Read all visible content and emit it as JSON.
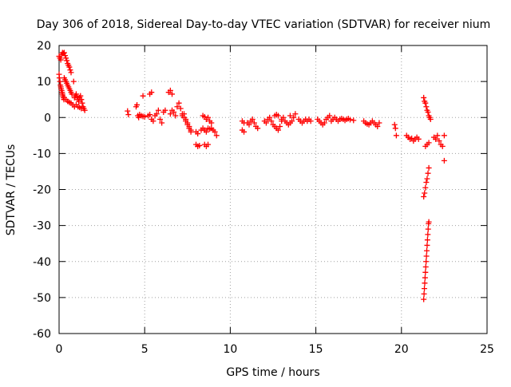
{
  "chart_data": {
    "type": "scatter",
    "title": "Day 306 of 2018, Sidereal Day-to-day VTEC variation (SDTVAR) for receiver nium",
    "xlabel": "GPS time / hours",
    "ylabel": "SDTVAR / TECUs",
    "xlim": [
      0,
      25
    ],
    "ylim": [
      -60,
      20
    ],
    "xticks": [
      0,
      5,
      10,
      15,
      20,
      25
    ],
    "yticks": [
      20,
      10,
      0,
      -10,
      -20,
      -30,
      -40,
      -50,
      -60
    ],
    "xtick_labels": [
      "0",
      "5",
      "10",
      "15",
      "20",
      "25"
    ],
    "ytick_labels": [
      "20",
      "10",
      "0",
      "-10",
      "-20",
      "-30",
      "-40",
      "-50",
      "-60"
    ],
    "grid": true,
    "marker": "+",
    "marker_color": "#ff0000",
    "series": [
      {
        "name": "SDTVAR",
        "points": [
          [
            0.0,
            17.0
          ],
          [
            0.05,
            16.5
          ],
          [
            0.1,
            16.0
          ],
          [
            0.15,
            17.5
          ],
          [
            0.2,
            18.0
          ],
          [
            0.25,
            17.8
          ],
          [
            0.3,
            18.0
          ],
          [
            0.35,
            17.2
          ],
          [
            0.4,
            16.5
          ],
          [
            0.45,
            15.8
          ],
          [
            0.5,
            15.0
          ],
          [
            0.55,
            14.5
          ],
          [
            0.6,
            14.0
          ],
          [
            0.65,
            13.2
          ],
          [
            0.7,
            12.5
          ],
          [
            0.0,
            12.0
          ],
          [
            0.02,
            11.0
          ],
          [
            0.05,
            10.0
          ],
          [
            0.08,
            9.0
          ],
          [
            0.1,
            8.5
          ],
          [
            0.12,
            8.0
          ],
          [
            0.15,
            7.5
          ],
          [
            0.18,
            7.0
          ],
          [
            0.2,
            6.5
          ],
          [
            0.22,
            6.0
          ],
          [
            0.25,
            5.5
          ],
          [
            0.28,
            5.0
          ],
          [
            0.3,
            11.0
          ],
          [
            0.35,
            10.5
          ],
          [
            0.4,
            10.0
          ],
          [
            0.45,
            9.5
          ],
          [
            0.5,
            9.0
          ],
          [
            0.55,
            8.5
          ],
          [
            0.6,
            8.0
          ],
          [
            0.65,
            7.5
          ],
          [
            0.7,
            7.0
          ],
          [
            0.75,
            6.5
          ],
          [
            0.3,
            5.5
          ],
          [
            0.4,
            5.0
          ],
          [
            0.5,
            4.5
          ],
          [
            0.6,
            4.2
          ],
          [
            0.7,
            4.0
          ],
          [
            0.8,
            3.5
          ],
          [
            0.9,
            3.0
          ],
          [
            0.85,
            10.0
          ],
          [
            0.9,
            5.5
          ],
          [
            0.95,
            6.0
          ],
          [
            1.0,
            6.5
          ],
          [
            1.05,
            5.8
          ],
          [
            1.1,
            5.0
          ],
          [
            1.15,
            4.5
          ],
          [
            1.2,
            5.5
          ],
          [
            1.25,
            6.0
          ],
          [
            1.3,
            5.0
          ],
          [
            1.35,
            4.0
          ],
          [
            1.4,
            3.0
          ],
          [
            1.45,
            2.5
          ],
          [
            1.5,
            2.0
          ],
          [
            1.0,
            3.5
          ],
          [
            1.1,
            3.0
          ],
          [
            1.2,
            2.8
          ],
          [
            1.3,
            2.5
          ],
          [
            4.0,
            1.8
          ],
          [
            4.05,
            0.8
          ],
          [
            4.5,
            3.0
          ],
          [
            4.55,
            3.5
          ],
          [
            4.6,
            0.5
          ],
          [
            4.65,
            0.0
          ],
          [
            4.7,
            0.8
          ],
          [
            4.8,
            0.5
          ],
          [
            4.9,
            0.3
          ],
          [
            5.0,
            0.2
          ],
          [
            4.9,
            6.0
          ],
          [
            5.3,
            6.5
          ],
          [
            5.4,
            7.0
          ],
          [
            5.2,
            0.5
          ],
          [
            5.3,
            0.8
          ],
          [
            5.4,
            -0.5
          ],
          [
            5.5,
            -1.0
          ],
          [
            5.6,
            0.5
          ],
          [
            5.7,
            1.0
          ],
          [
            5.8,
            2.0
          ],
          [
            5.9,
            -0.5
          ],
          [
            6.0,
            -1.5
          ],
          [
            6.1,
            1.5
          ],
          [
            6.2,
            2.0
          ],
          [
            6.4,
            7.0
          ],
          [
            6.5,
            7.5
          ],
          [
            6.6,
            6.5
          ],
          [
            6.5,
            1.0
          ],
          [
            6.6,
            2.0
          ],
          [
            6.7,
            1.5
          ],
          [
            6.8,
            0.5
          ],
          [
            6.9,
            3.0
          ],
          [
            7.0,
            4.0
          ],
          [
            7.1,
            2.5
          ],
          [
            7.2,
            1.0
          ],
          [
            7.3,
            0.0
          ],
          [
            7.4,
            -1.0
          ],
          [
            7.5,
            -2.0
          ],
          [
            7.6,
            -3.0
          ],
          [
            7.7,
            -4.0
          ],
          [
            7.2,
            0.5
          ],
          [
            7.3,
            1.0
          ],
          [
            7.4,
            -0.5
          ],
          [
            7.5,
            -1.5
          ],
          [
            7.6,
            -2.5
          ],
          [
            7.7,
            -3.5
          ],
          [
            8.0,
            -4.0
          ],
          [
            8.1,
            -4.5
          ],
          [
            8.0,
            -7.5
          ],
          [
            8.1,
            -8.0
          ],
          [
            8.2,
            -7.8
          ],
          [
            8.4,
            0.5
          ],
          [
            8.5,
            0.2
          ],
          [
            8.6,
            -0.5
          ],
          [
            8.7,
            0.0
          ],
          [
            8.8,
            -1.0
          ],
          [
            8.9,
            -1.5
          ],
          [
            8.3,
            -3.5
          ],
          [
            8.4,
            -3.0
          ],
          [
            8.5,
            -3.5
          ],
          [
            8.6,
            -4.0
          ],
          [
            8.7,
            -3.0
          ],
          [
            8.8,
            -3.2
          ],
          [
            8.9,
            -3.0
          ],
          [
            9.0,
            -3.5
          ],
          [
            9.1,
            -4.0
          ],
          [
            9.2,
            -5.0
          ],
          [
            8.5,
            -7.5
          ],
          [
            8.6,
            -8.0
          ],
          [
            8.7,
            -7.5
          ],
          [
            10.7,
            -1.0
          ],
          [
            10.8,
            -1.5
          ],
          [
            10.7,
            -3.5
          ],
          [
            10.8,
            -4.0
          ],
          [
            11.0,
            -1.5
          ],
          [
            11.1,
            -2.0
          ],
          [
            11.2,
            -1.0
          ],
          [
            11.3,
            -0.5
          ],
          [
            11.4,
            -1.5
          ],
          [
            11.5,
            -2.5
          ],
          [
            11.6,
            -3.0
          ],
          [
            12.0,
            -1.0
          ],
          [
            12.1,
            -1.5
          ],
          [
            12.2,
            -0.5
          ],
          [
            12.3,
            0.0
          ],
          [
            12.4,
            -1.0
          ],
          [
            12.5,
            -2.0
          ],
          [
            12.6,
            -2.5
          ],
          [
            12.7,
            -3.0
          ],
          [
            12.8,
            -3.5
          ],
          [
            12.9,
            -2.5
          ],
          [
            13.0,
            -1.0
          ],
          [
            12.6,
            0.5
          ],
          [
            12.7,
            0.8
          ],
          [
            12.8,
            0.5
          ],
          [
            13.0,
            -0.5
          ],
          [
            13.1,
            0.0
          ],
          [
            13.2,
            -1.0
          ],
          [
            13.3,
            -1.5
          ],
          [
            13.4,
            -2.0
          ],
          [
            13.5,
            -1.5
          ],
          [
            13.6,
            -1.0
          ],
          [
            13.5,
            0.5
          ],
          [
            13.7,
            0.0
          ],
          [
            13.8,
            1.0
          ],
          [
            14.0,
            -0.5
          ],
          [
            14.1,
            -1.0
          ],
          [
            14.2,
            -1.5
          ],
          [
            14.3,
            -1.0
          ],
          [
            14.4,
            -0.5
          ],
          [
            14.5,
            -1.0
          ],
          [
            14.6,
            -0.5
          ],
          [
            14.7,
            -1.0
          ],
          [
            15.1,
            -0.5
          ],
          [
            15.2,
            -1.0
          ],
          [
            15.3,
            -1.5
          ],
          [
            15.4,
            -2.0
          ],
          [
            15.5,
            -1.5
          ],
          [
            15.6,
            -0.5
          ],
          [
            15.7,
            0.0
          ],
          [
            15.8,
            0.5
          ],
          [
            15.9,
            -1.0
          ],
          [
            16.0,
            -0.5
          ],
          [
            16.1,
            0.0
          ],
          [
            16.2,
            -0.5
          ],
          [
            16.3,
            -1.0
          ],
          [
            16.4,
            -0.5
          ],
          [
            16.5,
            -0.3
          ],
          [
            16.6,
            -0.5
          ],
          [
            16.7,
            -0.8
          ],
          [
            16.8,
            -0.5
          ],
          [
            16.9,
            -0.3
          ],
          [
            17.0,
            -0.6
          ],
          [
            17.2,
            -0.8
          ],
          [
            17.8,
            -1.0
          ],
          [
            17.9,
            -1.5
          ],
          [
            18.0,
            -1.8
          ],
          [
            18.1,
            -2.0
          ],
          [
            18.2,
            -1.5
          ],
          [
            18.3,
            -1.0
          ],
          [
            18.4,
            -1.5
          ],
          [
            18.5,
            -2.0
          ],
          [
            18.6,
            -2.5
          ],
          [
            18.7,
            -1.5
          ],
          [
            19.6,
            -2.0
          ],
          [
            19.65,
            -3.0
          ],
          [
            19.7,
            -5.0
          ],
          [
            20.3,
            -5.0
          ],
          [
            20.4,
            -5.5
          ],
          [
            20.5,
            -6.0
          ],
          [
            20.6,
            -5.8
          ],
          [
            20.7,
            -6.5
          ],
          [
            20.8,
            -6.0
          ],
          [
            20.9,
            -5.5
          ],
          [
            21.0,
            -6.0
          ],
          [
            21.3,
            5.5
          ],
          [
            21.35,
            4.5
          ],
          [
            21.4,
            4.0
          ],
          [
            21.45,
            3.0
          ],
          [
            21.5,
            2.0
          ],
          [
            21.55,
            1.5
          ],
          [
            21.6,
            0.5
          ],
          [
            21.65,
            0.0
          ],
          [
            21.7,
            -0.5
          ],
          [
            21.3,
            -50.5
          ],
          [
            21.32,
            -49.0
          ],
          [
            21.34,
            -47.5
          ],
          [
            21.36,
            -46.0
          ],
          [
            21.38,
            -44.5
          ],
          [
            21.4,
            -43.0
          ],
          [
            21.42,
            -41.5
          ],
          [
            21.44,
            -40.0
          ],
          [
            21.46,
            -38.5
          ],
          [
            21.48,
            -37.0
          ],
          [
            21.5,
            -35.5
          ],
          [
            21.52,
            -34.0
          ],
          [
            21.54,
            -32.5
          ],
          [
            21.56,
            -31.0
          ],
          [
            21.58,
            -29.5
          ],
          [
            21.6,
            -29.0
          ],
          [
            21.3,
            -22.0
          ],
          [
            21.35,
            -21.0
          ],
          [
            21.4,
            -19.5
          ],
          [
            21.45,
            -18.0
          ],
          [
            21.5,
            -17.0
          ],
          [
            21.55,
            -15.5
          ],
          [
            21.6,
            -14.0
          ],
          [
            21.4,
            -8.0
          ],
          [
            21.5,
            -7.5
          ],
          [
            21.6,
            -7.0
          ],
          [
            21.9,
            -5.5
          ],
          [
            22.0,
            -6.0
          ],
          [
            22.1,
            -5.0
          ],
          [
            22.2,
            -6.5
          ],
          [
            22.3,
            -7.5
          ],
          [
            22.4,
            -8.0
          ],
          [
            22.5,
            -5.0
          ],
          [
            22.5,
            -12.0
          ]
        ]
      }
    ]
  }
}
